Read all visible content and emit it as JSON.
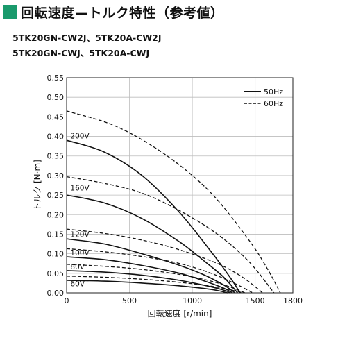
{
  "page": {
    "title": "回転速度—トルク特性（参考値）",
    "accent_color": "#1a9a6c",
    "models": [
      "5TK20GN-CW2J、5TK20A-CW2J",
      "5TK20GN-CWJ、5TK20A-CWJ"
    ]
  },
  "chart_data": {
    "type": "line",
    "xlabel": "回転速度 [r/min]",
    "ylabel": "トルク [N·m]",
    "xlim": [
      0,
      1800
    ],
    "ylim": [
      0,
      0.55
    ],
    "xticks": [
      0,
      500,
      1000,
      1500,
      1800
    ],
    "yticks": [
      0,
      0.05,
      0.1,
      0.15,
      0.2,
      0.25,
      0.3,
      0.35,
      0.4,
      0.45,
      0.5,
      0.55
    ],
    "grid": true,
    "legend": {
      "position": "top-right",
      "entries": [
        {
          "label": "50Hz",
          "style": "solid"
        },
        {
          "label": "60Hz",
          "style": "dashed"
        }
      ]
    },
    "voltage_labels": [
      {
        "text": "200V",
        "x": 30,
        "y": 0.395
      },
      {
        "text": "160V",
        "x": 30,
        "y": 0.262
      },
      {
        "text": "120V",
        "x": 30,
        "y": 0.143
      },
      {
        "text": "100V",
        "x": 30,
        "y": 0.096
      },
      {
        "text": "80V",
        "x": 30,
        "y": 0.06
      },
      {
        "text": "60V",
        "x": 30,
        "y": 0.017
      }
    ],
    "series": [
      {
        "voltage": "200V",
        "frequency": "50Hz",
        "style": "solid",
        "x": [
          0,
          300,
          600,
          900,
          1150,
          1300,
          1380
        ],
        "y": [
          0.39,
          0.36,
          0.3,
          0.205,
          0.105,
          0.04,
          0.0
        ]
      },
      {
        "voltage": "200V",
        "frequency": "60Hz",
        "style": "dashed",
        "x": [
          0,
          400,
          800,
          1150,
          1450,
          1600,
          1700
        ],
        "y": [
          0.465,
          0.425,
          0.35,
          0.255,
          0.135,
          0.06,
          0.0
        ]
      },
      {
        "voltage": "160V",
        "frequency": "50Hz",
        "style": "solid",
        "x": [
          0,
          300,
          600,
          900,
          1100,
          1250,
          1360
        ],
        "y": [
          0.25,
          0.23,
          0.19,
          0.13,
          0.08,
          0.04,
          0.0
        ]
      },
      {
        "voltage": "160V",
        "frequency": "60Hz",
        "style": "dashed",
        "x": [
          0,
          300,
          600,
          900,
          1200,
          1450,
          1650
        ],
        "y": [
          0.297,
          0.28,
          0.255,
          0.21,
          0.15,
          0.08,
          0.0
        ]
      },
      {
        "voltage": "120V",
        "frequency": "50Hz",
        "style": "solid",
        "x": [
          0,
          300,
          600,
          900,
          1100,
          1250,
          1340
        ],
        "y": [
          0.138,
          0.125,
          0.1,
          0.07,
          0.045,
          0.02,
          0.0
        ]
      },
      {
        "voltage": "120V",
        "frequency": "60Hz",
        "style": "dashed",
        "x": [
          0,
          300,
          600,
          900,
          1200,
          1400,
          1560
        ],
        "y": [
          0.163,
          0.152,
          0.135,
          0.11,
          0.075,
          0.04,
          0.0
        ]
      },
      {
        "voltage": "100V",
        "frequency": "50Hz",
        "style": "solid",
        "x": [
          0,
          300,
          600,
          900,
          1100,
          1250,
          1320
        ],
        "y": [
          0.092,
          0.085,
          0.07,
          0.05,
          0.03,
          0.012,
          0.0
        ]
      },
      {
        "voltage": "100V",
        "frequency": "60Hz",
        "style": "dashed",
        "x": [
          0,
          300,
          600,
          900,
          1150,
          1350,
          1480
        ],
        "y": [
          0.113,
          0.105,
          0.093,
          0.075,
          0.05,
          0.022,
          0.0
        ]
      },
      {
        "voltage": "80V",
        "frequency": "50Hz",
        "style": "solid",
        "x": [
          0,
          300,
          600,
          900,
          1100,
          1250,
          1300
        ],
        "y": [
          0.057,
          0.053,
          0.045,
          0.032,
          0.019,
          0.007,
          0.0
        ]
      },
      {
        "voltage": "80V",
        "frequency": "60Hz",
        "style": "dashed",
        "x": [
          0,
          300,
          600,
          900,
          1150,
          1300,
          1420
        ],
        "y": [
          0.073,
          0.068,
          0.06,
          0.047,
          0.03,
          0.015,
          0.0
        ]
      },
      {
        "voltage": "60V",
        "frequency": "50Hz",
        "style": "solid",
        "x": [
          0,
          300,
          600,
          900,
          1100,
          1200,
          1280
        ],
        "y": [
          0.032,
          0.03,
          0.025,
          0.018,
          0.011,
          0.006,
          0.0
        ]
      },
      {
        "voltage": "60V",
        "frequency": "60Hz",
        "style": "dashed",
        "x": [
          0,
          300,
          600,
          900,
          1150,
          1300,
          1400
        ],
        "y": [
          0.043,
          0.04,
          0.035,
          0.027,
          0.017,
          0.008,
          0.0
        ]
      }
    ]
  }
}
